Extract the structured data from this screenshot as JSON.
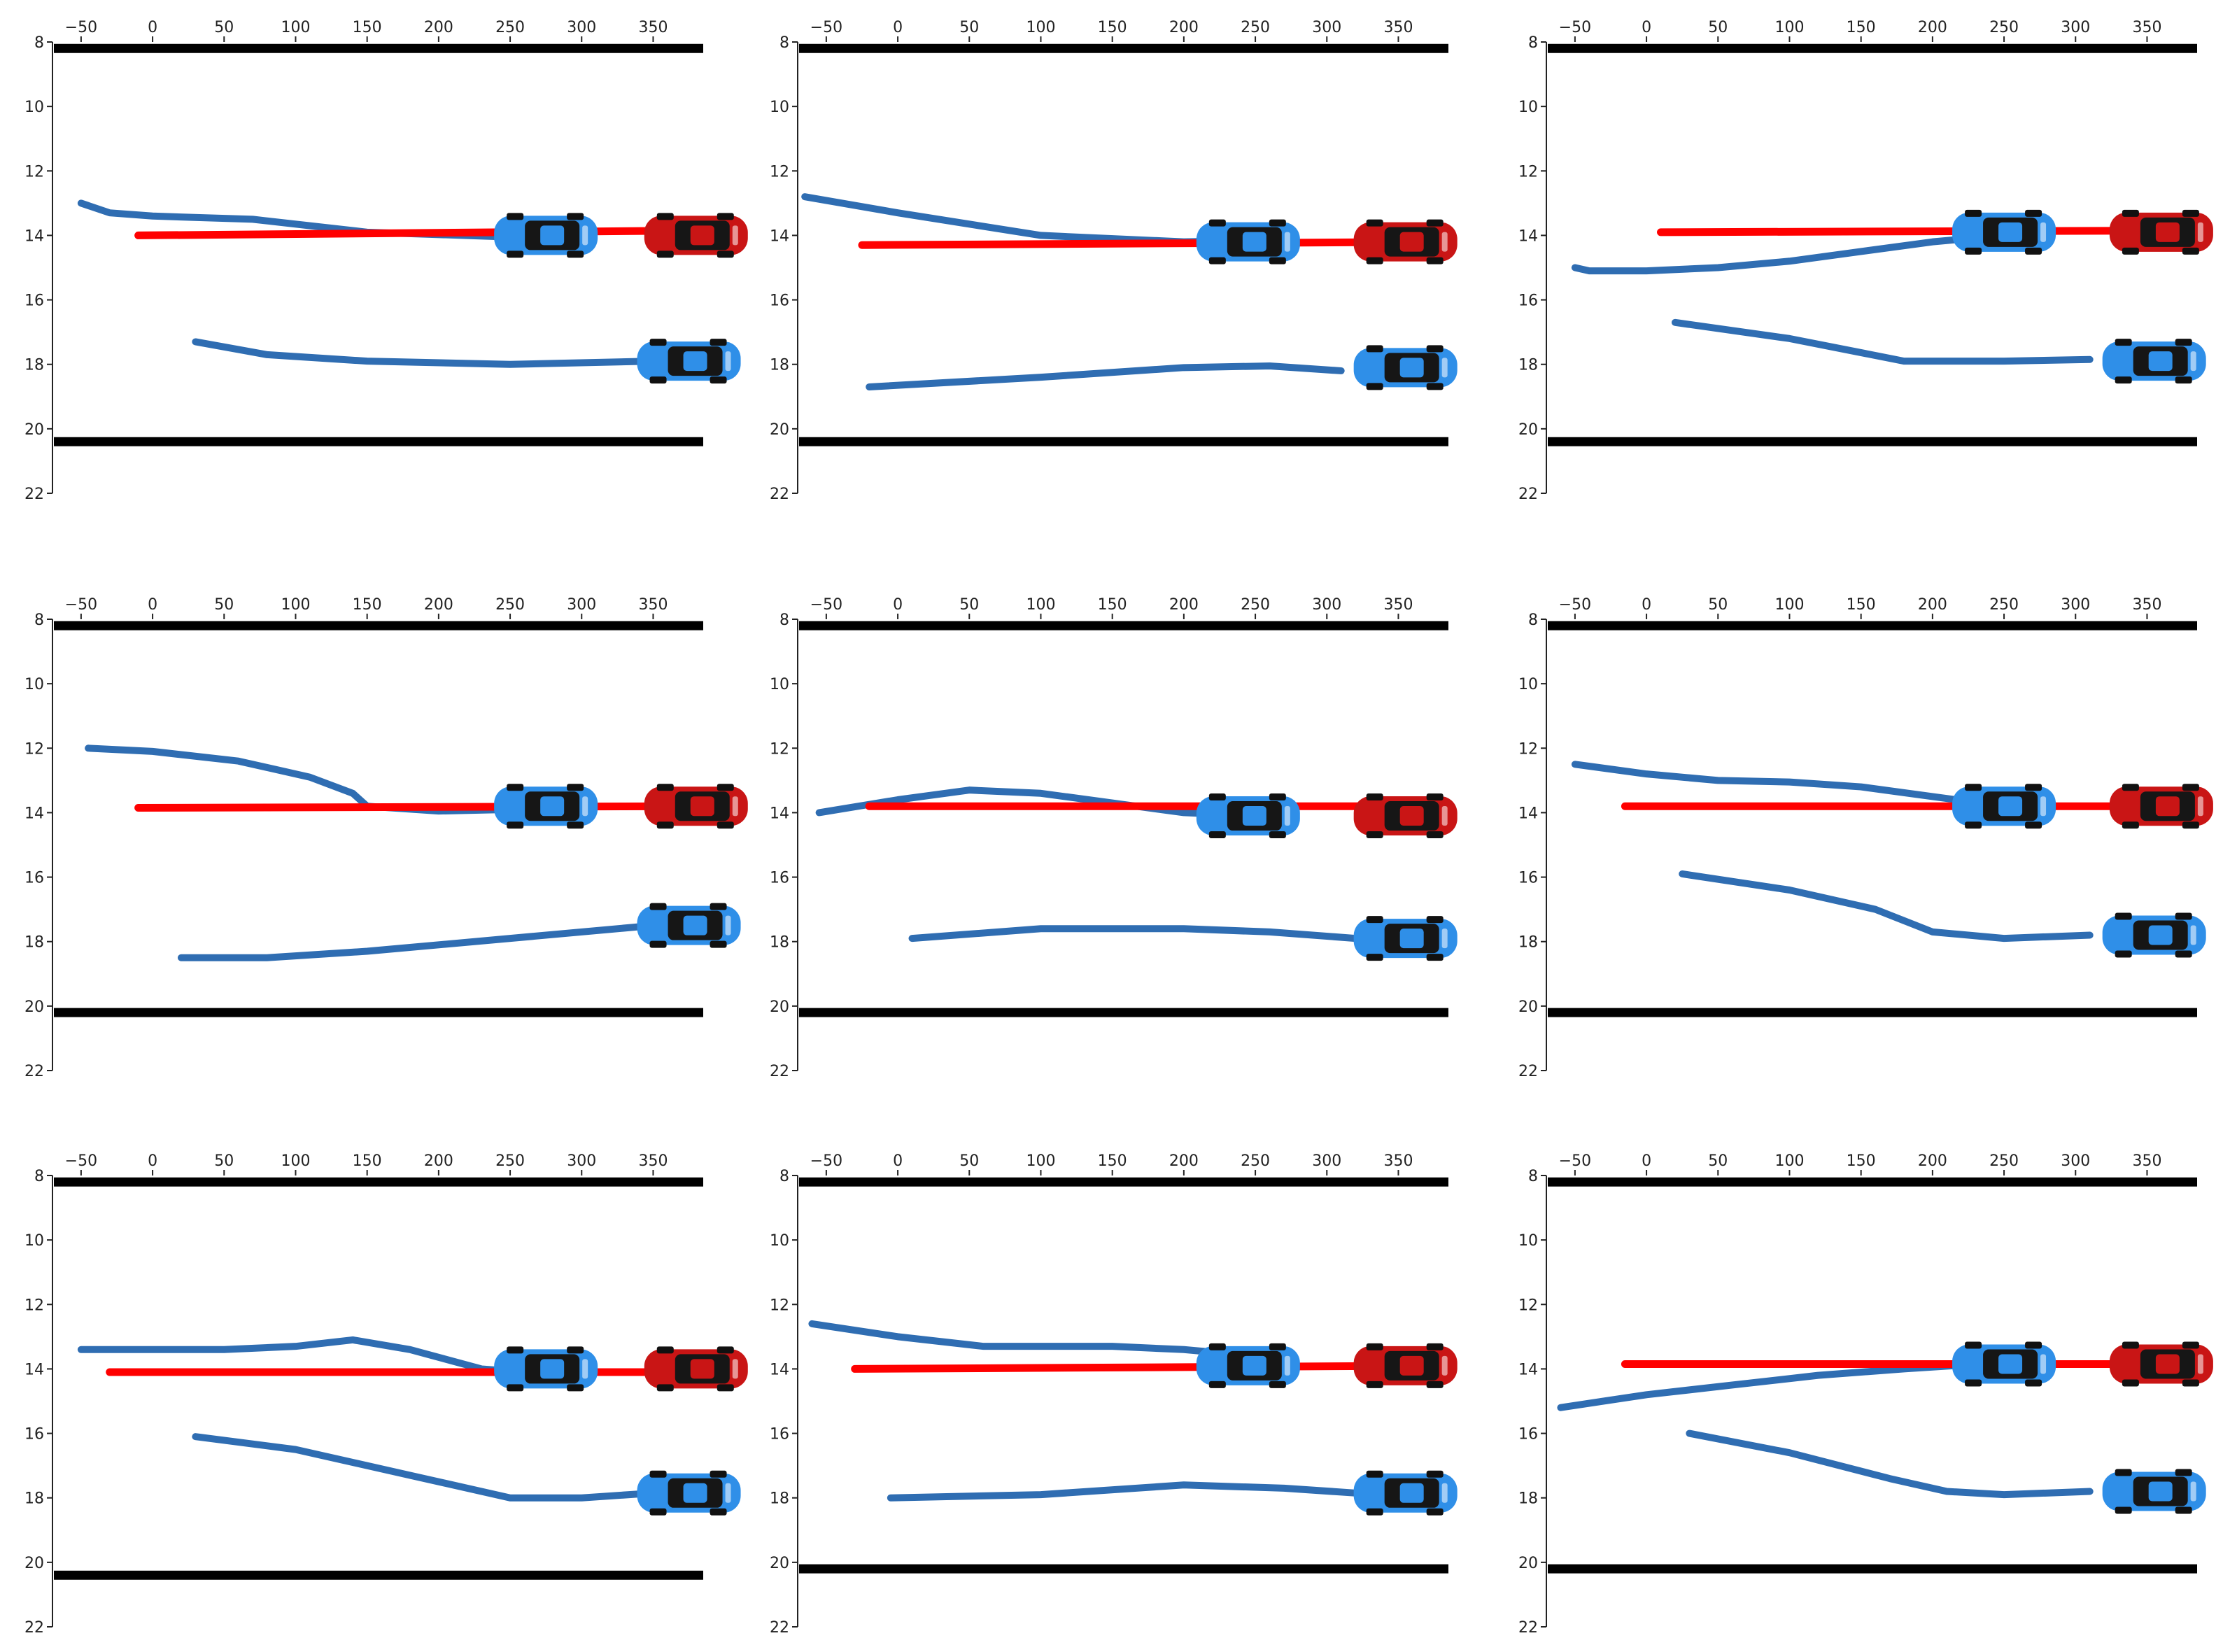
{
  "chart_data": [
    {
      "type": "line",
      "title": "",
      "xlabel": "",
      "ylabel": "",
      "xlim": [
        -70,
        385
      ],
      "ylim": [
        22,
        8
      ],
      "xticks": [
        "−50",
        "0",
        "50",
        "100",
        "150",
        "200",
        "250",
        "300",
        "350"
      ],
      "yticks": [
        "8",
        "10",
        "12",
        "14",
        "16",
        "18",
        "20",
        "22"
      ],
      "road_edges": [
        8.2,
        20.4
      ],
      "series": [
        {
          "name": "upper-vehicle-trajectory",
          "color": "#2f6db2",
          "x": [
            -50,
            -30,
            0,
            70,
            150,
            250
          ],
          "y": [
            13.0,
            13.3,
            13.4,
            13.5,
            13.9,
            14.05
          ]
        },
        {
          "name": "lower-vehicle-trajectory",
          "color": "#2f6db2",
          "x": [
            30,
            80,
            150,
            250,
            350
          ],
          "y": [
            17.3,
            17.7,
            17.9,
            18.0,
            17.9
          ]
        },
        {
          "name": "ego-planned-path",
          "color": "#ff0000",
          "x": [
            -10,
            380
          ],
          "y": [
            14.0,
            13.85
          ]
        }
      ],
      "cars": [
        {
          "role": "neighbor",
          "color": "#2f8fe8",
          "x": 275,
          "y": 14.0
        },
        {
          "role": "ego",
          "color": "#c91515",
          "x": 380,
          "y": 14.0
        },
        {
          "role": "neighbor",
          "color": "#2f8fe8",
          "x": 375,
          "y": 17.9
        }
      ]
    },
    {
      "type": "line",
      "title": "",
      "xlabel": "",
      "ylabel": "",
      "xlim": [
        -70,
        385
      ],
      "ylim": [
        22,
        8
      ],
      "xticks": [
        "−50",
        "0",
        "50",
        "100",
        "150",
        "200",
        "250",
        "300",
        "350"
      ],
      "yticks": [
        "8",
        "10",
        "12",
        "14",
        "16",
        "18",
        "20",
        "22"
      ],
      "road_edges": [
        8.2,
        20.4
      ],
      "series": [
        {
          "name": "upper-vehicle-trajectory",
          "color": "#2f6db2",
          "x": [
            -65,
            0,
            100,
            200,
            260
          ],
          "y": [
            12.8,
            13.3,
            14.0,
            14.2,
            14.15
          ]
        },
        {
          "name": "lower-vehicle-trajectory",
          "color": "#2f6db2",
          "x": [
            -20,
            100,
            200,
            260,
            310
          ],
          "y": [
            18.7,
            18.4,
            18.1,
            18.05,
            18.2
          ]
        },
        {
          "name": "ego-planned-path",
          "color": "#ff0000",
          "x": [
            -25,
            380
          ],
          "y": [
            14.3,
            14.2
          ]
        }
      ],
      "cars": [
        {
          "role": "neighbor",
          "color": "#2f8fe8",
          "x": 245,
          "y": 14.2
        },
        {
          "role": "ego",
          "color": "#c91515",
          "x": 355,
          "y": 14.2
        },
        {
          "role": "neighbor",
          "color": "#2f8fe8",
          "x": 355,
          "y": 18.1
        }
      ]
    },
    {
      "type": "line",
      "title": "",
      "xlabel": "",
      "ylabel": "",
      "xlim": [
        -70,
        385
      ],
      "ylim": [
        22,
        8
      ],
      "xticks": [
        "−50",
        "0",
        "50",
        "100",
        "150",
        "200",
        "250",
        "300",
        "350"
      ],
      "yticks": [
        "8",
        "10",
        "12",
        "14",
        "16",
        "18",
        "20",
        "22"
      ],
      "road_edges": [
        8.2,
        20.4
      ],
      "series": [
        {
          "name": "upper-vehicle-trajectory",
          "color": "#2f6db2",
          "x": [
            -50,
            -40,
            0,
            50,
            100,
            150,
            200,
            250
          ],
          "y": [
            15.0,
            15.1,
            15.1,
            15.0,
            14.8,
            14.5,
            14.2,
            14.0
          ]
        },
        {
          "name": "lower-vehicle-trajectory",
          "color": "#2f6db2",
          "x": [
            20,
            100,
            180,
            250,
            310
          ],
          "y": [
            16.7,
            17.2,
            17.9,
            17.9,
            17.85
          ]
        },
        {
          "name": "ego-planned-path",
          "color": "#ff0000",
          "x": [
            10,
            380
          ],
          "y": [
            13.9,
            13.85
          ]
        }
      ],
      "cars": [
        {
          "role": "neighbor",
          "color": "#2f8fe8",
          "x": 250,
          "y": 13.9
        },
        {
          "role": "ego",
          "color": "#c91515",
          "x": 360,
          "y": 13.9
        },
        {
          "role": "neighbor",
          "color": "#2f8fe8",
          "x": 355,
          "y": 17.9
        }
      ]
    },
    {
      "type": "line",
      "title": "",
      "xlabel": "",
      "ylabel": "",
      "xlim": [
        -70,
        385
      ],
      "ylim": [
        22,
        8
      ],
      "xticks": [
        "−50",
        "0",
        "50",
        "100",
        "150",
        "200",
        "250",
        "300",
        "350"
      ],
      "yticks": [
        "8",
        "10",
        "12",
        "14",
        "16",
        "18",
        "20",
        "22"
      ],
      "road_edges": [
        8.2,
        20.2
      ],
      "series": [
        {
          "name": "upper-vehicle-trajectory",
          "color": "#2f6db2",
          "x": [
            -45,
            0,
            60,
            110,
            140,
            150,
            200,
            250
          ],
          "y": [
            12.0,
            12.1,
            12.4,
            12.9,
            13.4,
            13.8,
            13.95,
            13.9
          ]
        },
        {
          "name": "lower-vehicle-trajectory",
          "color": "#2f6db2",
          "x": [
            20,
            80,
            150,
            250,
            350
          ],
          "y": [
            18.5,
            18.5,
            18.3,
            17.9,
            17.5
          ]
        },
        {
          "name": "ego-planned-path",
          "color": "#ff0000",
          "x": [
            -10,
            380
          ],
          "y": [
            13.85,
            13.8
          ]
        }
      ],
      "cars": [
        {
          "role": "neighbor",
          "color": "#2f8fe8",
          "x": 275,
          "y": 13.8
        },
        {
          "role": "ego",
          "color": "#c91515",
          "x": 380,
          "y": 13.8
        },
        {
          "role": "neighbor",
          "color": "#2f8fe8",
          "x": 375,
          "y": 17.5
        }
      ]
    },
    {
      "type": "line",
      "title": "",
      "xlabel": "",
      "ylabel": "",
      "xlim": [
        -70,
        385
      ],
      "ylim": [
        22,
        8
      ],
      "xticks": [
        "−50",
        "0",
        "50",
        "100",
        "150",
        "200",
        "250",
        "300",
        "350"
      ],
      "yticks": [
        "8",
        "10",
        "12",
        "14",
        "16",
        "18",
        "20",
        "22"
      ],
      "road_edges": [
        8.2,
        20.2
      ],
      "series": [
        {
          "name": "upper-vehicle-trajectory",
          "color": "#2f6db2",
          "x": [
            -55,
            0,
            50,
            100,
            150,
            200,
            250
          ],
          "y": [
            14.0,
            13.6,
            13.3,
            13.4,
            13.7,
            14.0,
            14.1
          ]
        },
        {
          "name": "lower-vehicle-trajectory",
          "color": "#2f6db2",
          "x": [
            10,
            100,
            200,
            260,
            320
          ],
          "y": [
            17.9,
            17.6,
            17.6,
            17.7,
            17.9
          ]
        },
        {
          "name": "ego-planned-path",
          "color": "#ff0000",
          "x": [
            -20,
            380
          ],
          "y": [
            13.8,
            13.8
          ]
        }
      ],
      "cars": [
        {
          "role": "neighbor",
          "color": "#2f8fe8",
          "x": 245,
          "y": 14.1
        },
        {
          "role": "ego",
          "color": "#c91515",
          "x": 355,
          "y": 14.1
        },
        {
          "role": "neighbor",
          "color": "#2f8fe8",
          "x": 355,
          "y": 17.9
        }
      ]
    },
    {
      "type": "line",
      "title": "",
      "xlabel": "",
      "ylabel": "",
      "xlim": [
        -70,
        385
      ],
      "ylim": [
        22,
        8
      ],
      "xticks": [
        "−50",
        "0",
        "50",
        "100",
        "150",
        "200",
        "250",
        "300",
        "350"
      ],
      "yticks": [
        "8",
        "10",
        "12",
        "14",
        "16",
        "18",
        "20",
        "22"
      ],
      "road_edges": [
        8.2,
        20.2
      ],
      "series": [
        {
          "name": "upper-vehicle-trajectory",
          "color": "#2f6db2",
          "x": [
            -50,
            0,
            50,
            100,
            150,
            200,
            250
          ],
          "y": [
            12.5,
            12.8,
            13.0,
            13.05,
            13.2,
            13.5,
            13.8
          ]
        },
        {
          "name": "lower-vehicle-trajectory",
          "color": "#2f6db2",
          "x": [
            25,
            100,
            160,
            200,
            250,
            310
          ],
          "y": [
            15.9,
            16.4,
            17.0,
            17.7,
            17.9,
            17.8
          ]
        },
        {
          "name": "ego-planned-path",
          "color": "#ff0000",
          "x": [
            -15,
            380
          ],
          "y": [
            13.8,
            13.8
          ]
        }
      ],
      "cars": [
        {
          "role": "neighbor",
          "color": "#2f8fe8",
          "x": 250,
          "y": 13.8
        },
        {
          "role": "ego",
          "color": "#c91515",
          "x": 360,
          "y": 13.8
        },
        {
          "role": "neighbor",
          "color": "#2f8fe8",
          "x": 355,
          "y": 17.8
        }
      ]
    },
    {
      "type": "line",
      "title": "",
      "xlabel": "",
      "ylabel": "",
      "xlim": [
        -70,
        385
      ],
      "ylim": [
        22,
        8
      ],
      "xticks": [
        "−50",
        "0",
        "50",
        "100",
        "150",
        "200",
        "250",
        "300",
        "350"
      ],
      "yticks": [
        "8",
        "10",
        "12",
        "14",
        "16",
        "18",
        "20",
        "22"
      ],
      "road_edges": [
        8.2,
        20.4
      ],
      "series": [
        {
          "name": "upper-vehicle-trajectory",
          "color": "#2f6db2",
          "x": [
            -50,
            0,
            50,
            100,
            140,
            180,
            230,
            260
          ],
          "y": [
            13.4,
            13.4,
            13.4,
            13.3,
            13.1,
            13.4,
            14.0,
            14.1
          ]
        },
        {
          "name": "lower-vehicle-trajectory",
          "color": "#2f6db2",
          "x": [
            30,
            100,
            180,
            250,
            300,
            350
          ],
          "y": [
            16.1,
            16.5,
            17.3,
            18.0,
            18.0,
            17.85
          ]
        },
        {
          "name": "ego-planned-path",
          "color": "#ff0000",
          "x": [
            -30,
            380
          ],
          "y": [
            14.1,
            14.1
          ]
        }
      ],
      "cars": [
        {
          "role": "neighbor",
          "color": "#2f8fe8",
          "x": 275,
          "y": 14.0
        },
        {
          "role": "ego",
          "color": "#c91515",
          "x": 380,
          "y": 14.0
        },
        {
          "role": "neighbor",
          "color": "#2f8fe8",
          "x": 375,
          "y": 17.85
        }
      ]
    },
    {
      "type": "line",
      "title": "",
      "xlabel": "",
      "ylabel": "",
      "xlim": [
        -70,
        385
      ],
      "ylim": [
        22,
        8
      ],
      "xticks": [
        "−50",
        "0",
        "50",
        "100",
        "150",
        "200",
        "250",
        "300",
        "350"
      ],
      "yticks": [
        "8",
        "10",
        "12",
        "14",
        "16",
        "18",
        "20",
        "22"
      ],
      "road_edges": [
        8.2,
        20.2
      ],
      "series": [
        {
          "name": "upper-vehicle-trajectory",
          "color": "#2f6db2",
          "x": [
            -60,
            0,
            60,
            120,
            150,
            200,
            250
          ],
          "y": [
            12.6,
            13.0,
            13.3,
            13.3,
            13.3,
            13.4,
            13.6
          ]
        },
        {
          "name": "lower-vehicle-trajectory",
          "color": "#2f6db2",
          "x": [
            -5,
            100,
            200,
            270,
            320
          ],
          "y": [
            18.0,
            17.9,
            17.6,
            17.7,
            17.85
          ]
        },
        {
          "name": "ego-planned-path",
          "color": "#ff0000",
          "x": [
            -30,
            380
          ],
          "y": [
            14.0,
            13.9
          ]
        }
      ],
      "cars": [
        {
          "role": "neighbor",
          "color": "#2f8fe8",
          "x": 245,
          "y": 13.9
        },
        {
          "role": "ego",
          "color": "#c91515",
          "x": 355,
          "y": 13.9
        },
        {
          "role": "neighbor",
          "color": "#2f8fe8",
          "x": 355,
          "y": 17.85
        }
      ]
    },
    {
      "type": "line",
      "title": "",
      "xlabel": "",
      "ylabel": "",
      "xlim": [
        -70,
        385
      ],
      "ylim": [
        22,
        8
      ],
      "xticks": [
        "−50",
        "0",
        "50",
        "100",
        "150",
        "200",
        "250",
        "300",
        "350"
      ],
      "yticks": [
        "8",
        "10",
        "12",
        "14",
        "16",
        "18",
        "20",
        "22"
      ],
      "road_edges": [
        8.2,
        20.2
      ],
      "series": [
        {
          "name": "upper-vehicle-trajectory",
          "color": "#2f6db2",
          "x": [
            -60,
            0,
            60,
            120,
            180,
            250
          ],
          "y": [
            15.2,
            14.8,
            14.5,
            14.2,
            14.0,
            13.8
          ]
        },
        {
          "name": "lower-vehicle-trajectory",
          "color": "#2f6db2",
          "x": [
            30,
            100,
            170,
            210,
            250,
            310
          ],
          "y": [
            16.0,
            16.6,
            17.4,
            17.8,
            17.9,
            17.8
          ]
        },
        {
          "name": "ego-planned-path",
          "color": "#ff0000",
          "x": [
            -15,
            380
          ],
          "y": [
            13.85,
            13.85
          ]
        }
      ],
      "cars": [
        {
          "role": "neighbor",
          "color": "#2f8fe8",
          "x": 250,
          "y": 13.85
        },
        {
          "role": "ego",
          "color": "#c91515",
          "x": 360,
          "y": 13.85
        },
        {
          "role": "neighbor",
          "color": "#2f8fe8",
          "x": 355,
          "y": 17.8
        }
      ]
    }
  ]
}
